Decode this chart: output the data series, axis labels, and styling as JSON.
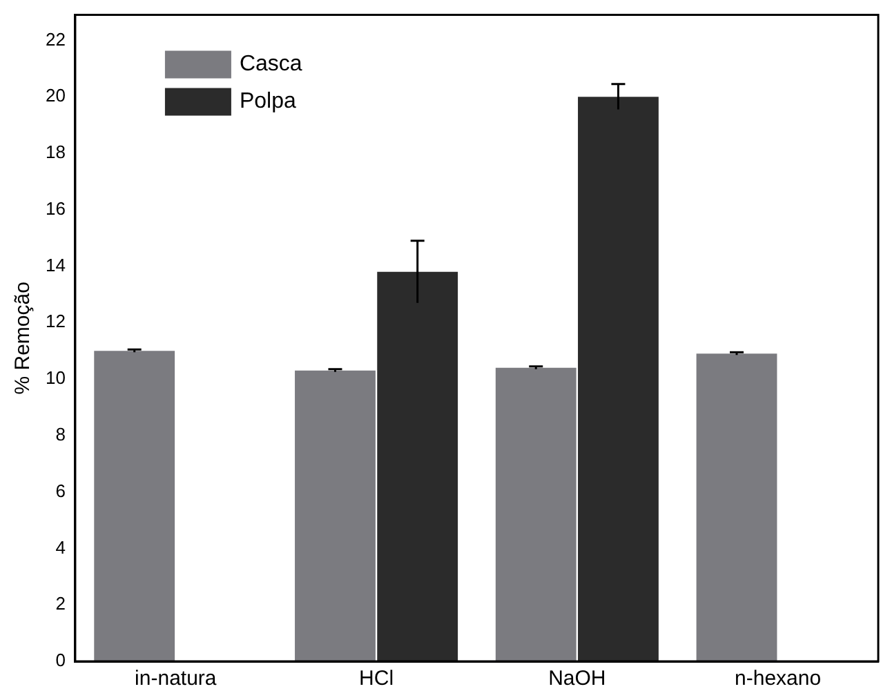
{
  "chart_data": {
    "type": "bar",
    "ylabel": "% Remoção",
    "categories": [
      "in-natura",
      "HCl",
      "NaOH",
      "n-hexano"
    ],
    "series": [
      {
        "name": "Casca",
        "color": "#7b7b80",
        "values": [
          11.0,
          10.3,
          10.4,
          10.9
        ],
        "errors": [
          0.05,
          0.05,
          0.05,
          0.05
        ]
      },
      {
        "name": "Polpa",
        "color": "#2b2b2b",
        "values": [
          null,
          13.8,
          20.0,
          null
        ],
        "errors": [
          null,
          1.1,
          0.45,
          null
        ]
      }
    ],
    "ylim": [
      0,
      22.9
    ],
    "yticks": [
      0,
      2,
      4,
      6,
      8,
      10,
      12,
      14,
      16,
      18,
      20,
      22
    ],
    "grid": false,
    "legend": "top left"
  }
}
